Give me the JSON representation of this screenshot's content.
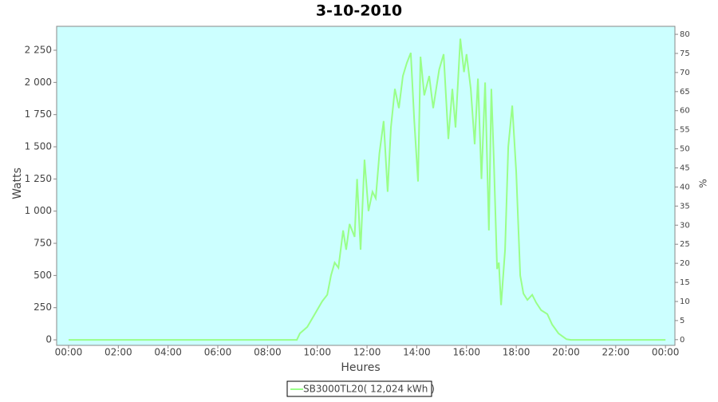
{
  "chart_data": {
    "type": "line",
    "title": "3-10-2010",
    "x_label": "Heures",
    "y_label": "Watts",
    "y2_label": "%",
    "background": "#ccffff",
    "grid": false,
    "legend": "bottom",
    "xlim": [
      -0.48,
      24.38
    ],
    "xticks": [
      {
        "value": 0,
        "label": "00:00"
      },
      {
        "value": 2,
        "label": "02:00"
      },
      {
        "value": 4,
        "label": "04:00"
      },
      {
        "value": 6,
        "label": "06:00"
      },
      {
        "value": 8,
        "label": "08:00"
      },
      {
        "value": 10,
        "label": "10:00"
      },
      {
        "value": 12,
        "label": "12:00"
      },
      {
        "value": 14,
        "label": "14:00"
      },
      {
        "value": 16,
        "label": "16:00"
      },
      {
        "value": 18,
        "label": "18:00"
      },
      {
        "value": 20,
        "label": "20:00"
      },
      {
        "value": 22,
        "label": "22:00"
      },
      {
        "value": 24,
        "label": "00:00"
      }
    ],
    "ylim": [
      -43,
      2436
    ],
    "yticks": [
      0,
      250,
      500,
      750,
      {
        "value": 1000,
        "label": "1 000"
      },
      {
        "value": 1250,
        "label": "1 250"
      },
      {
        "value": 1500,
        "label": "1 500"
      },
      {
        "value": 1750,
        "label": "1 750"
      },
      {
        "value": 2000,
        "label": "2 000"
      },
      {
        "value": 2250,
        "label": "2 250"
      }
    ],
    "y2lim": [
      -1.5,
      82.1
    ],
    "y2ticks": [
      0,
      5,
      10,
      15,
      20,
      25,
      30,
      35,
      40,
      45,
      50,
      55,
      60,
      65,
      70,
      75,
      80
    ],
    "series": [
      {
        "name": "SB3000TL20( 12,024 kWh )",
        "color": "#99ff88",
        "x": [
          0,
          9.18,
          9.3,
          9.6,
          9.9,
          10.2,
          10.4,
          10.55,
          10.7,
          10.85,
          11.04,
          11.16,
          11.3,
          11.5,
          11.6,
          11.74,
          11.9,
          12.06,
          12.22,
          12.35,
          12.5,
          12.67,
          12.83,
          12.96,
          13.12,
          13.28,
          13.44,
          13.6,
          13.76,
          13.9,
          14.05,
          14.15,
          14.3,
          14.5,
          14.66,
          14.9,
          15.08,
          15.27,
          15.43,
          15.56,
          15.75,
          15.9,
          16.0,
          16.17,
          16.33,
          16.46,
          16.6,
          16.75,
          16.9,
          17.0,
          17.1,
          17.23,
          17.3,
          17.39,
          17.55,
          17.68,
          17.84,
          18.0,
          18.16,
          18.29,
          18.45,
          18.64,
          18.8,
          19.0,
          19.25,
          19.44,
          19.7,
          20.02,
          20.2,
          24
        ],
        "values": [
          0,
          0,
          50,
          100,
          200,
          300,
          350,
          500,
          600,
          560,
          850,
          700,
          900,
          800,
          1250,
          700,
          1400,
          1000,
          1150,
          1100,
          1450,
          1700,
          1150,
          1650,
          1950,
          1800,
          2050,
          2150,
          2230,
          1700,
          1230,
          2200,
          1900,
          2050,
          1800,
          2100,
          2220,
          1560,
          1950,
          1650,
          2340,
          2080,
          2220,
          1950,
          1520,
          2030,
          1250,
          2000,
          850,
          1950,
          1400,
          550,
          600,
          270,
          700,
          1500,
          1820,
          1300,
          500,
          360,
          310,
          350,
          290,
          230,
          200,
          120,
          50,
          5,
          0,
          0
        ]
      }
    ]
  }
}
